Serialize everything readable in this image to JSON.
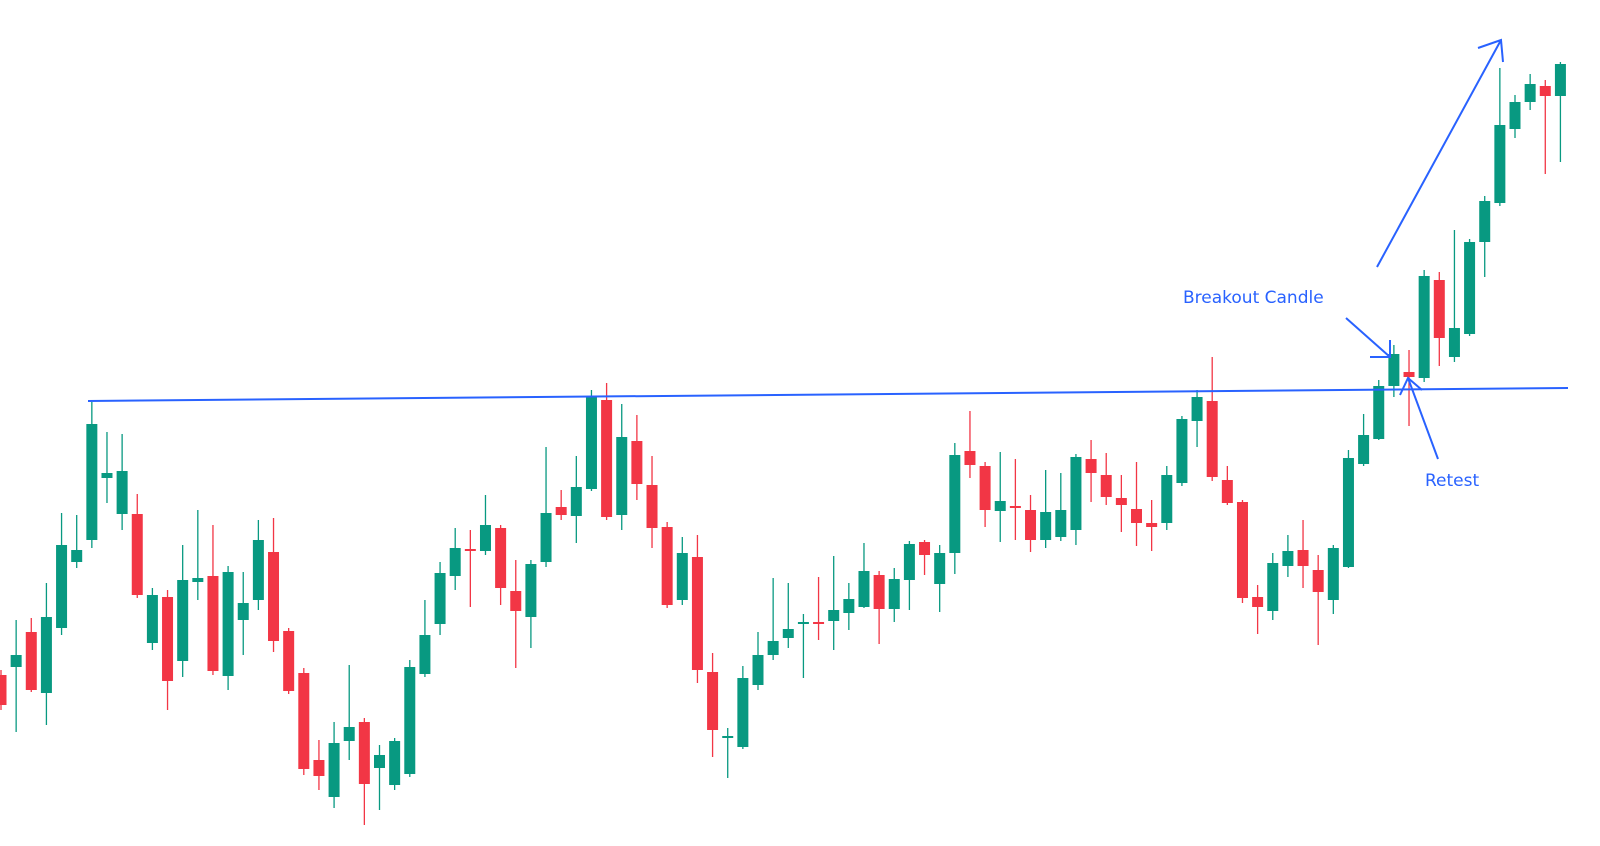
{
  "chart_data": {
    "type": "candlestick",
    "up_color": "#089981",
    "down_color": "#f23645",
    "ylim": [
      0,
      84.6
    ],
    "annotations": [
      "Breakout Candle",
      "Retest"
    ],
    "open": [
      17.1,
      17.9,
      21.4,
      15.3,
      21.8,
      28.4,
      30.6,
      36.8,
      33.2,
      33.2,
      20.3,
      24.9,
      18.5,
      26.4,
      27.0,
      17.0,
      22.6,
      24.6,
      29.4,
      21.5,
      17.3,
      8.6,
      4.9,
      10.5,
      12.4,
      7.8,
      6.1,
      7.2,
      17.2,
      22.2,
      27.0,
      29.7,
      29.5,
      31.8,
      25.5,
      22.9,
      28.4,
      33.9,
      33.0,
      35.7,
      44.6,
      33.1,
      40.5,
      36.1,
      31.9,
      24.6,
      28.9,
      17.4,
      10.8,
      9.9,
      16.1,
      19.1,
      20.8,
      22.2,
      22.4,
      22.5,
      23.3,
      23.9,
      27.1,
      23.7,
      26.6,
      30.4,
      26.2,
      29.3,
      39.5,
      38.0,
      33.5,
      34.0,
      33.6,
      30.6,
      30.9,
      31.6,
      38.7,
      37.1,
      34.8,
      33.7,
      32.3,
      32.3,
      36.3,
      42.5,
      44.5,
      36.6,
      34.4,
      24.9,
      23.5,
      28.0,
      29.6,
      27.6,
      24.6,
      27.9,
      38.2,
      40.7,
      46.0,
      47.4,
      46.8,
      56.6,
      48.9,
      51.2,
      60.4,
      64.3,
      71.7,
      74.4,
      76.0,
      75.0
    ],
    "high": [
      17.6,
      22.6,
      22.8,
      26.3,
      33.3,
      33.1,
      44.4,
      41.4,
      41.2,
      35.2,
      25.8,
      25.6,
      30.1,
      33.6,
      32.1,
      28.0,
      27.4,
      32.6,
      32.8,
      21.8,
      17.8,
      10.6,
      12.4,
      18.1,
      12.8,
      10.1,
      10.8,
      18.6,
      24.6,
      28.4,
      31.8,
      31.6,
      35.1,
      32.1,
      28.6,
      28.6,
      39.9,
      35.6,
      39.0,
      45.6,
      46.3,
      44.2,
      43.1,
      39.0,
      32.4,
      30.9,
      31.1,
      19.3,
      11.8,
      18.0,
      21.4,
      26.8,
      26.3,
      23.2,
      26.9,
      29.0,
      26.3,
      30.3,
      27.5,
      27.8,
      30.5,
      30.6,
      30.1,
      40.3,
      43.5,
      38.4,
      39.4,
      38.7,
      35.1,
      37.6,
      37.3,
      39.2,
      40.6,
      39.3,
      37.1,
      38.4,
      34.6,
      38.0,
      43.0,
      45.6,
      48.9,
      38.0,
      34.6,
      26.1,
      29.3,
      31.1,
      32.6,
      29.1,
      30.1,
      39.6,
      43.2,
      46.6,
      50.1,
      49.6,
      57.6,
      57.4,
      61.6,
      60.7,
      65.0,
      77.8,
      75.1,
      77.2,
      76.6,
      78.4
    ],
    "low": [
      13.6,
      11.4,
      15.4,
      12.1,
      21.1,
      27.8,
      29.8,
      34.3,
      31.6,
      24.8,
      19.6,
      13.6,
      16.9,
      24.6,
      17.1,
      15.6,
      19.1,
      23.6,
      19.4,
      15.2,
      7.1,
      5.6,
      3.8,
      8.6,
      2.1,
      3.6,
      5.6,
      6.9,
      16.9,
      21.1,
      25.6,
      23.9,
      29.1,
      24.1,
      17.8,
      19.8,
      27.9,
      32.6,
      30.3,
      35.5,
      32.6,
      31.6,
      34.6,
      29.8,
      23.8,
      24.1,
      16.3,
      8.9,
      6.8,
      9.7,
      15.6,
      18.6,
      19.8,
      16.8,
      20.6,
      19.6,
      21.6,
      23.8,
      20.2,
      22.4,
      23.6,
      27.1,
      23.4,
      27.2,
      36.8,
      31.9,
      30.4,
      30.6,
      29.4,
      29.8,
      30.5,
      30.1,
      34.4,
      34.1,
      31.4,
      30.0,
      29.5,
      31.6,
      36.0,
      39.9,
      36.5,
      34.1,
      24.3,
      21.2,
      22.6,
      26.9,
      25.8,
      20.1,
      23.2,
      27.8,
      38.0,
      40.6,
      44.9,
      42.0,
      46.4,
      48.0,
      48.4,
      51.0,
      56.9,
      64.0,
      70.8,
      73.6,
      67.2,
      68.4
    ],
    "close": [
      14.1,
      19.1,
      15.6,
      22.9,
      30.1,
      29.6,
      42.2,
      37.3,
      37.5,
      25.1,
      25.1,
      16.5,
      26.6,
      26.8,
      17.5,
      27.4,
      24.3,
      30.6,
      20.5,
      15.5,
      7.7,
      7.0,
      10.3,
      11.9,
      6.2,
      9.1,
      10.5,
      17.9,
      21.1,
      27.3,
      29.8,
      29.5,
      32.1,
      25.8,
      23.5,
      28.2,
      33.3,
      33.1,
      35.9,
      45.0,
      32.9,
      40.9,
      36.2,
      31.8,
      24.1,
      29.3,
      17.6,
      11.6,
      11.0,
      16.8,
      19.1,
      20.5,
      21.7,
      22.4,
      22.2,
      23.6,
      24.7,
      27.5,
      23.7,
      26.7,
      30.2,
      29.1,
      29.3,
      39.1,
      38.1,
      33.6,
      34.5,
      33.8,
      30.6,
      33.4,
      33.6,
      38.9,
      37.3,
      34.9,
      34.1,
      32.3,
      31.9,
      37.1,
      42.7,
      44.9,
      36.9,
      34.3,
      24.8,
      23.9,
      28.3,
      29.5,
      28.0,
      25.4,
      29.8,
      38.8,
      41.1,
      46.0,
      49.2,
      46.9,
      57.0,
      50.8,
      51.8,
      60.4,
      64.5,
      72.1,
      74.4,
      76.2,
      75.0,
      78.2
    ]
  }
}
